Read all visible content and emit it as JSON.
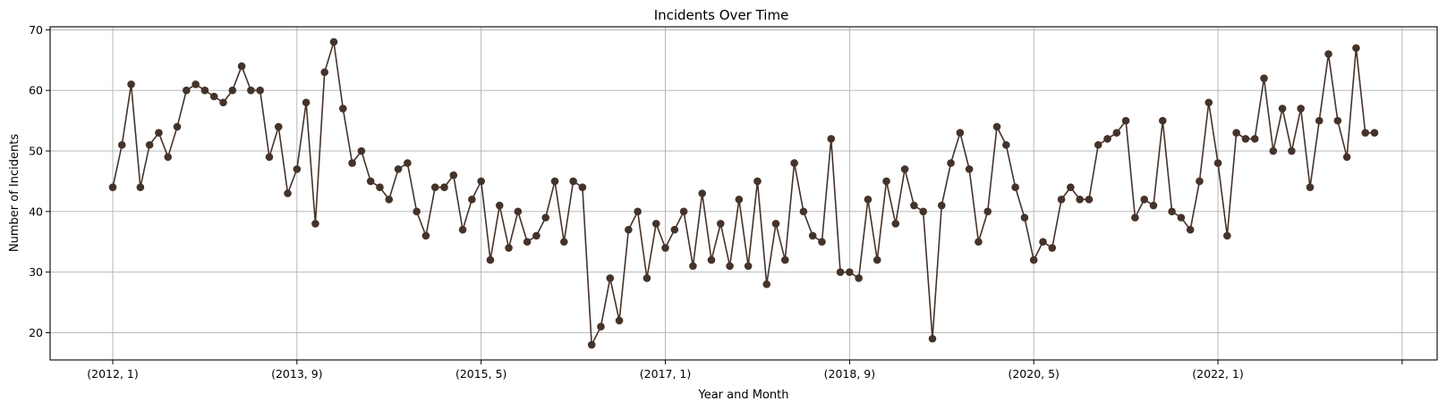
{
  "chart_data": {
    "type": "line",
    "title": "Incidents Over Time",
    "xlabel": "Year and Month",
    "ylabel": "Number of Incidents",
    "x_tick_labels": [
      "(2012, 1)",
      "(2013, 9)",
      "(2015, 5)",
      "(2017, 1)",
      "(2018, 9)",
      "(2020, 5)",
      "(2022, 1)",
      ""
    ],
    "x_tick_indices": [
      0,
      20,
      40,
      60,
      80,
      100,
      120,
      140
    ],
    "x_range": [
      -6.8,
      143.8
    ],
    "y_ticks": [
      20,
      30,
      40,
      50,
      60,
      70
    ],
    "ylim": [
      15.5,
      70.5
    ],
    "grid": true,
    "color": "#45332a",
    "series": [
      {
        "values": [
          44,
          51,
          61,
          44,
          51,
          53,
          49,
          54,
          60,
          61,
          60,
          59,
          58,
          60,
          64,
          60,
          60,
          49,
          54,
          43,
          47,
          58,
          38,
          63,
          68,
          57,
          48,
          50,
          45,
          44,
          42,
          47,
          48,
          40,
          36,
          44,
          44,
          46,
          37,
          42,
          45,
          32,
          41,
          34,
          40,
          35,
          36,
          39,
          45,
          35,
          45,
          44,
          18,
          21,
          29,
          22,
          37,
          40,
          29,
          38,
          34,
          37,
          40,
          31,
          43,
          32,
          38,
          31,
          42,
          31,
          45,
          28,
          38,
          32,
          48,
          40,
          36,
          35,
          52,
          30,
          30,
          29,
          42,
          32,
          45,
          38,
          47,
          41,
          40,
          19,
          41,
          48,
          53,
          47,
          35,
          40,
          54,
          51,
          44,
          39,
          32,
          35,
          34,
          42,
          44,
          42,
          42,
          51,
          52,
          53,
          55,
          39,
          42,
          41,
          55,
          40,
          39,
          37,
          45,
          58,
          48,
          36,
          53,
          52,
          52,
          62,
          50,
          57,
          50,
          57,
          44,
          55,
          66,
          55,
          49,
          67,
          53,
          53
        ]
      }
    ]
  }
}
